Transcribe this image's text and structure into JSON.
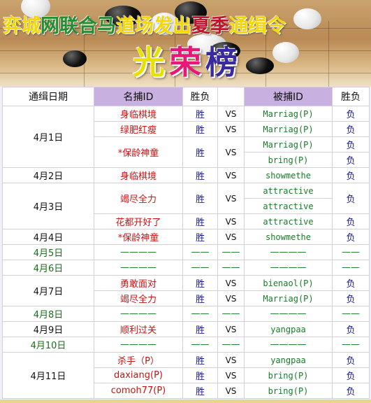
{
  "banner": {
    "title_chars": [
      {
        "ch": "弈",
        "color": "#f5d800"
      },
      {
        "ch": "城",
        "color": "#f5d800"
      },
      {
        "ch": "网",
        "color": "#1f8f2f"
      },
      {
        "ch": "联",
        "color": "#1f8f2f"
      },
      {
        "ch": "合",
        "color": "#1f8f2f"
      },
      {
        "ch": "马",
        "color": "#1f8f2f"
      },
      {
        "ch": "道",
        "color": "#f5d800"
      },
      {
        "ch": "场",
        "color": "#f5d800"
      },
      {
        "ch": "发",
        "color": "#f5d800"
      },
      {
        "ch": "出",
        "color": "#f5d800"
      },
      {
        "ch": "夏",
        "color": "#c0152a"
      },
      {
        "ch": "季",
        "color": "#c0152a"
      },
      {
        "ch": "通",
        "color": "#f5d800"
      },
      {
        "ch": "缉",
        "color": "#f5d800"
      },
      {
        "ch": "令",
        "color": "#f5d800"
      }
    ],
    "glory_chars": [
      {
        "ch": "光",
        "color": "#e8e000"
      },
      {
        "ch": "荣",
        "color": "#e81878"
      },
      {
        "ch": "榜",
        "color": "#3a2aa0"
      }
    ]
  },
  "table": {
    "headers": {
      "date": "通缉日期",
      "hunter": "名捕ID",
      "result1": "胜负",
      "vs": "",
      "target": "被捕ID",
      "result2": "胜负"
    },
    "rows": [
      {
        "date": "4月1日",
        "hunter": "身临棋境",
        "win": "胜",
        "vs": "VS",
        "target": "Marriag(P)",
        "lose": "负"
      },
      {
        "hunter": "绿肥红瘦",
        "win": "胜",
        "vs": "VS",
        "target": "Marriag(P)",
        "lose": "负"
      },
      {
        "hunter": "*保龄神童",
        "win": "胜",
        "vs": "VS",
        "target": "Marriag(P)",
        "lose": "负"
      },
      {
        "target": "bring(P)",
        "lose": "负"
      },
      {
        "date": "4月2日",
        "hunter": "身临棋境",
        "win": "胜",
        "vs": "VS",
        "target": "showmethe",
        "lose": "负"
      },
      {
        "date": "4月3日",
        "hunter": "竭尽全力",
        "win": "胜",
        "vs": "VS",
        "target": "attractive",
        "lose": "负"
      },
      {
        "target": "attractive"
      },
      {
        "hunter": "花都开好了",
        "win": "胜",
        "vs": "VS",
        "target": "attractive",
        "lose": "负"
      },
      {
        "date": "4月4日",
        "hunter": "*保龄神童",
        "win": "胜",
        "vs": "VS",
        "target": "showmethe",
        "lose": "负"
      },
      {
        "date": "4月5日",
        "hunter": "————",
        "win": "——",
        "vs": "——",
        "target": "————",
        "lose": "——"
      },
      {
        "date": "4月6日",
        "hunter": "————",
        "win": "——",
        "vs": "——",
        "target": "————",
        "lose": "——"
      },
      {
        "date": "4月7日",
        "hunter": "勇敢面对",
        "win": "胜",
        "vs": "VS",
        "target": "bienaol(P)",
        "lose": "负"
      },
      {
        "hunter": "竭尽全力",
        "win": "胜",
        "vs": "VS",
        "target": "Marriag(P)",
        "lose": "负"
      },
      {
        "date": "4月8日",
        "hunter": "————",
        "win": "——",
        "vs": "——",
        "target": "————",
        "lose": "——"
      },
      {
        "date": "4月9日",
        "hunter": "顺利过关",
        "win": "胜",
        "vs": "VS",
        "target": "yangpaa",
        "lose": "负"
      },
      {
        "date": "4月10日",
        "hunter": "————",
        "win": "——",
        "vs": "——",
        "target": "————",
        "lose": "——"
      },
      {
        "date": "4月11日",
        "hunter": "杀手（P）",
        "win": "胜",
        "vs": "VS",
        "target": "yangpaa",
        "lose": "负"
      },
      {
        "hunter": "daxiang(P)",
        "win": "胜",
        "vs": "VS",
        "target": "bring(P)",
        "lose": "负"
      },
      {
        "hunter": "comoh77(P)",
        "win": "胜",
        "vs": "VS",
        "target": "bring(P)",
        "lose": "负"
      }
    ]
  },
  "colors": {
    "header_highlight": "#c8b0e0",
    "hunter_text": "#cc1111",
    "target_text": "#1a7a2a",
    "result_text": "#1a1a8a",
    "empty_date_text": "#1a6e1a"
  }
}
